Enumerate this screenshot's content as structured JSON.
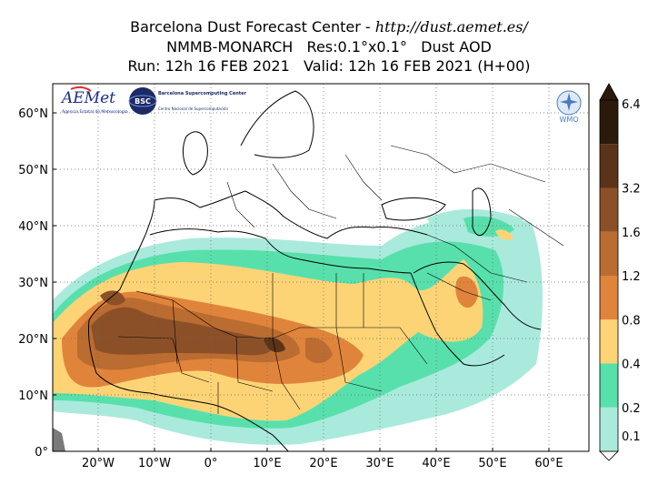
{
  "title": {
    "line1_prefix": "Barcelona Dust Forecast Center - ",
    "line1_url": "http://dust.aemet.es/",
    "line2": "NMMB-MONARCH   Res:0.1°x0.1°   Dust AOD",
    "line3": "Run: 12h 16 FEB 2021   Valid: 12h 16 FEB 2021 (H+00)"
  },
  "axes": {
    "lat_labels": [
      "0°",
      "10°N",
      "20°N",
      "30°N",
      "40°N",
      "50°N",
      "60°N"
    ],
    "lon_labels": [
      "20°W",
      "10°W",
      "0°",
      "10°E",
      "20°E",
      "30°E",
      "40°E",
      "50°E",
      "60°E"
    ]
  },
  "colorbar": {
    "labels": [
      "0.1",
      "0.2",
      "0.4",
      "0.8",
      "1.2",
      "1.6",
      "3.2",
      "6.4"
    ],
    "colors": [
      "#a9eadc",
      "#58e0ac",
      "#fcd475",
      "#e0843c",
      "#bb6c30",
      "#8c5028",
      "#5a3418",
      "#2b1a0b"
    ]
  },
  "logos": {
    "aemet": "AEMet",
    "aemet_sub": "Agencia Estatal de Meteorología",
    "bsc": "BSC",
    "bsc_sub": "Barcelona Supercomputing Center",
    "bsc_sub2": "Centro Nacional de Supercomputación",
    "wmo": "WMO"
  },
  "colors": {
    "aod_0_1": "#a9eadc",
    "aod_0_2": "#58e0ac",
    "aod_0_4": "#fcd475",
    "aod_0_8": "#e0843c",
    "aod_1_2": "#bb6c30",
    "aod_1_6": "#8c5028",
    "aod_3_2": "#5a3418",
    "aod_6_4": "#2b1a0b"
  }
}
